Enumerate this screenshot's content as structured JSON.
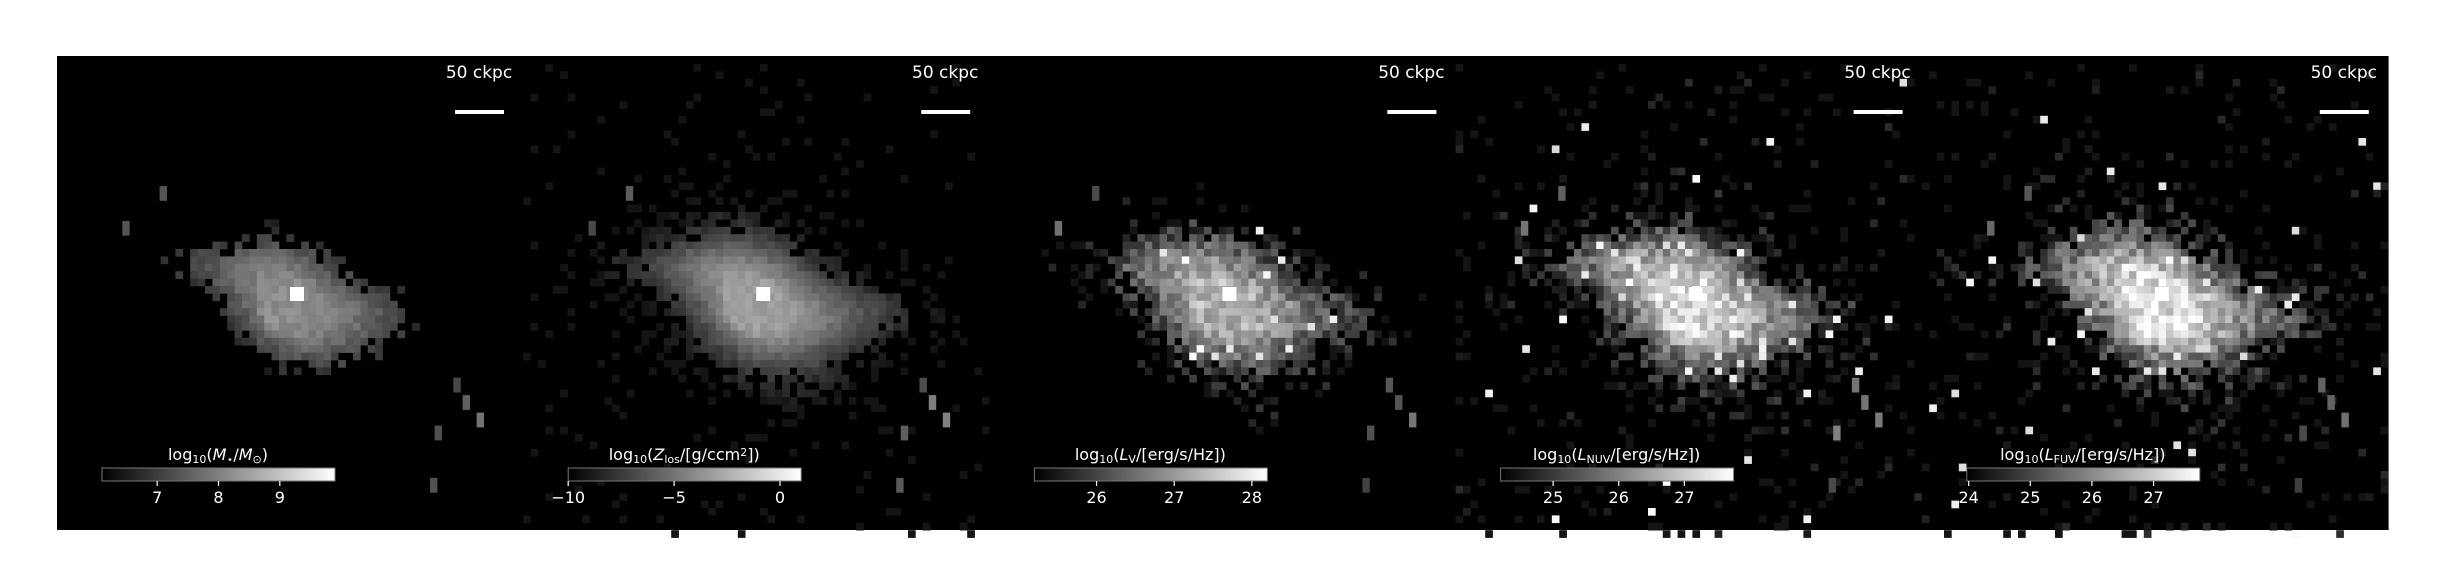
{
  "figure": {
    "background": "#000000",
    "colormap": "greys_r",
    "panels": [
      {
        "scale_label": "50 ckpc",
        "colorbar": {
          "label_parts": [
            {
              "t": "log",
              "s": "n"
            },
            {
              "t": "10",
              "s": "sub"
            },
            {
              "t": "(",
              "s": "n"
            },
            {
              "t": "M",
              "s": "i"
            },
            {
              "t": "⋆",
              "s": "sub"
            },
            {
              "t": "/",
              "s": "n"
            },
            {
              "t": "M",
              "s": "i"
            },
            {
              "t": "⊙",
              "s": "sub"
            },
            {
              "t": ")",
              "s": "n"
            }
          ],
          "range": [
            6.1,
            9.9
          ],
          "ticks": [
            "7",
            "8",
            "9"
          ]
        }
      },
      {
        "scale_label": "50 ckpc",
        "colorbar": {
          "label_parts": [
            {
              "t": "log",
              "s": "n"
            },
            {
              "t": "10",
              "s": "sub"
            },
            {
              "t": "(",
              "s": "n"
            },
            {
              "t": "Z",
              "s": "i"
            },
            {
              "t": "los",
              "s": "sub"
            },
            {
              "t": "/[g/ccm",
              "s": "n"
            },
            {
              "t": "2",
              "s": "sup"
            },
            {
              "t": "])",
              "s": "n"
            }
          ],
          "range": [
            -10.0,
            1.0
          ],
          "ticks": [
            "−10",
            "−5",
            "0"
          ]
        }
      },
      {
        "scale_label": "50 ckpc",
        "colorbar": {
          "label_parts": [
            {
              "t": "log",
              "s": "n"
            },
            {
              "t": "10",
              "s": "sub"
            },
            {
              "t": "(",
              "s": "n"
            },
            {
              "t": "L",
              "s": "i"
            },
            {
              "t": "V",
              "s": "sub"
            },
            {
              "t": "/[erg/s/Hz])",
              "s": "n"
            }
          ],
          "range": [
            25.2,
            28.2
          ],
          "ticks": [
            "26",
            "27",
            "28"
          ]
        }
      },
      {
        "scale_label": "50 ckpc",
        "colorbar": {
          "label_parts": [
            {
              "t": "log",
              "s": "n"
            },
            {
              "t": "10",
              "s": "sub"
            },
            {
              "t": "(",
              "s": "n"
            },
            {
              "t": "L",
              "s": "i"
            },
            {
              "t": "NUV",
              "s": "sub"
            },
            {
              "t": "/[erg/s/Hz])",
              "s": "n"
            }
          ],
          "range": [
            24.2,
            27.75
          ],
          "ticks": [
            "25",
            "26",
            "27"
          ]
        }
      },
      {
        "scale_label": "50 ckpc",
        "colorbar": {
          "label_parts": [
            {
              "t": "log",
              "s": "n"
            },
            {
              "t": "10",
              "s": "sub"
            },
            {
              "t": "(",
              "s": "n"
            },
            {
              "t": "L",
              "s": "i"
            },
            {
              "t": "FUV",
              "s": "sub"
            },
            {
              "t": "/[erg/s/Hz])",
              "s": "n"
            }
          ],
          "range": [
            23.97,
            27.75
          ],
          "ticks": [
            "24",
            "25",
            "26",
            "27"
          ]
        }
      }
    ]
  },
  "chart_data": [
    {
      "type": "heatmap",
      "quantity": "stellar mass",
      "scale_bar": "50 ckpc",
      "colorbar_ticks": [
        7,
        8,
        9
      ],
      "colorbar_range": [
        6.1,
        9.9
      ]
    },
    {
      "type": "heatmap",
      "quantity": "line-of-sight metal column",
      "scale_bar": "50 ckpc",
      "colorbar_ticks": [
        -10,
        -5,
        0
      ],
      "colorbar_range": [
        -10.0,
        1.0
      ]
    },
    {
      "type": "heatmap",
      "quantity": "V-band luminosity",
      "scale_bar": "50 ckpc",
      "colorbar_ticks": [
        26,
        27,
        28
      ],
      "colorbar_range": [
        25.2,
        28.2
      ]
    },
    {
      "type": "heatmap",
      "quantity": "NUV luminosity",
      "scale_bar": "50 ckpc",
      "colorbar_ticks": [
        25,
        26,
        27
      ],
      "colorbar_range": [
        24.2,
        27.75
      ]
    },
    {
      "type": "heatmap",
      "quantity": "FUV luminosity",
      "scale_bar": "50 ckpc",
      "colorbar_ticks": [
        24,
        25,
        26,
        27
      ],
      "colorbar_range": [
        23.97,
        27.75
      ]
    }
  ]
}
